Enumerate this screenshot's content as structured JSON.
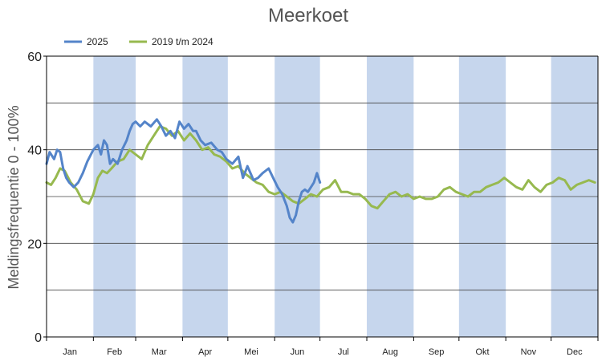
{
  "chart_data": {
    "type": "line",
    "title": "Meerkoet",
    "xlabel": "",
    "ylabel": "Meldingsfrequentie 0 - 100%",
    "ylim": [
      0,
      60
    ],
    "yticks": [
      0,
      20,
      40,
      60
    ],
    "grid": "horizontal every 10",
    "legend_position": "top-left",
    "months": [
      "Jan",
      "Feb",
      "Mar",
      "Apr",
      "Mei",
      "Jun",
      "Jul",
      "Aug",
      "Sep",
      "Okt",
      "Nov",
      "Dec"
    ],
    "shaded_months": [
      "Feb",
      "Apr",
      "Jun",
      "Aug",
      "Okt",
      "Dec"
    ],
    "colors": {
      "shade": "#c6d6ed",
      "grid": "#444444",
      "axis": "#000000"
    },
    "series": [
      {
        "name": "2025",
        "color": "#5484c9",
        "x_day": [
          1,
          3,
          6,
          8,
          10,
          12,
          14,
          16,
          19,
          22,
          25,
          28,
          32,
          35,
          37,
          39,
          41,
          43,
          45,
          48,
          51,
          54,
          56,
          58,
          60,
          63,
          66,
          70,
          74,
          77,
          80,
          83,
          86,
          89,
          92,
          95,
          98,
          100,
          103,
          106,
          110,
          114,
          117,
          120,
          124,
          128,
          131,
          134,
          138,
          141,
          144,
          148,
          151,
          154,
          157,
          160,
          162,
          164,
          166,
          168,
          170,
          172,
          174,
          176,
          178,
          180,
          182
        ],
        "y": [
          37,
          39.5,
          38,
          40,
          39.5,
          36,
          34,
          33,
          32,
          33,
          35,
          37.5,
          40,
          41,
          39,
          42,
          41,
          37,
          38,
          37,
          40,
          42,
          44,
          45.5,
          46,
          45,
          46,
          45,
          46.5,
          45,
          43,
          44,
          42.5,
          46,
          44.5,
          45.5,
          44,
          44,
          42,
          41,
          41.5,
          40,
          39.5,
          38,
          37,
          38.5,
          34,
          36.5,
          33.5,
          34,
          35,
          36,
          34,
          32,
          30.5,
          28,
          25.5,
          24.5,
          26,
          29,
          31,
          31.5,
          31,
          32,
          33,
          35,
          33
        ]
      },
      {
        "name": "2019 t/m 2024",
        "color": "#97b94f",
        "x_day": [
          1,
          4,
          7,
          10,
          13,
          17,
          21,
          25,
          29,
          32,
          35,
          38,
          41,
          44,
          48,
          52,
          56,
          60,
          64,
          68,
          72,
          76,
          80,
          84,
          88,
          92,
          96,
          100,
          104,
          108,
          112,
          116,
          120,
          124,
          128,
          132,
          136,
          140,
          144,
          148,
          152,
          156,
          160,
          164,
          168,
          172,
          176,
          180,
          184,
          188,
          192,
          196,
          200,
          204,
          208,
          212,
          216,
          220,
          224,
          228,
          232,
          236,
          240,
          244,
          248,
          252,
          256,
          260,
          264,
          268,
          272,
          276,
          280,
          284,
          288,
          292,
          296,
          300,
          304,
          308,
          312,
          316,
          320,
          324,
          328,
          332,
          336,
          340,
          344,
          348,
          352,
          356,
          360,
          364
        ],
        "y": [
          33,
          32.5,
          34,
          36,
          35.5,
          33,
          31.5,
          29,
          28.5,
          30.5,
          34,
          35.5,
          35,
          36,
          37.5,
          38,
          40,
          39,
          38,
          41,
          43,
          45,
          44.5,
          43,
          44,
          42,
          43.5,
          42,
          40,
          40.5,
          39,
          38.5,
          37.5,
          36,
          36.5,
          35,
          34,
          33,
          32.5,
          31,
          30.5,
          31,
          30,
          29,
          28.5,
          29.5,
          30.5,
          30,
          31.5,
          32,
          33.5,
          31,
          31,
          30.5,
          30.5,
          29.5,
          28,
          27.5,
          29,
          30.5,
          31,
          30,
          30.5,
          29.5,
          30,
          29.5,
          29.5,
          30,
          31.5,
          32,
          31,
          30.5,
          30,
          31,
          31,
          32,
          32.5,
          33,
          34,
          33,
          32,
          31.5,
          33.5,
          32,
          31,
          32.5,
          33,
          34,
          33.5,
          31.5,
          32.5,
          33,
          33.5,
          33
        ]
      }
    ]
  }
}
